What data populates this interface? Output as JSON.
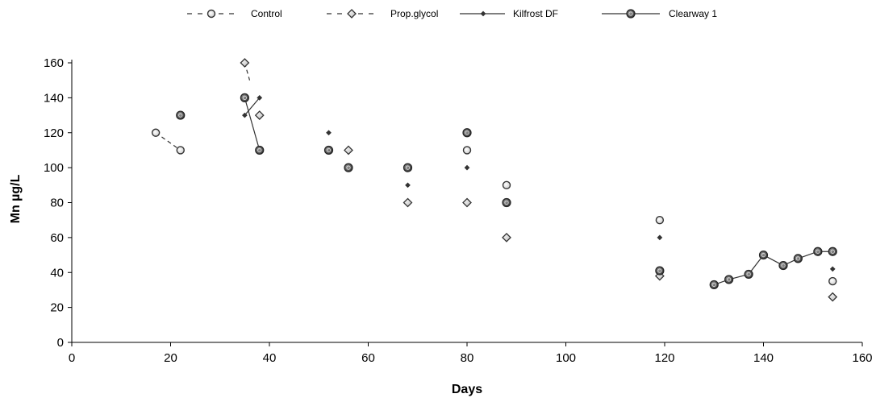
{
  "chart_data": {
    "type": "scatter",
    "xlabel": "Days",
    "ylabel": "Mn µg/L",
    "xlim": [
      0,
      160
    ],
    "ylim": [
      0,
      160
    ],
    "xticks": [
      0,
      20,
      40,
      60,
      80,
      100,
      120,
      140,
      160
    ],
    "yticks": [
      0,
      20,
      40,
      60,
      80,
      100,
      120,
      140,
      160
    ],
    "grid": false,
    "legend_position": "top",
    "series": [
      {
        "name": "Control",
        "marker": "open-circle",
        "line": "dashed",
        "color": "#333333",
        "points": [
          [
            17,
            120
          ],
          [
            22,
            110
          ],
          [
            35,
            140
          ],
          [
            52,
            110
          ],
          [
            68,
            100
          ],
          [
            80,
            110
          ],
          [
            88,
            90
          ],
          [
            119,
            70
          ],
          [
            154,
            35
          ]
        ]
      },
      {
        "name": "Prop.glycol",
        "marker": "diamond",
        "line": "dashed",
        "color": "#333333",
        "points": [
          [
            35,
            160
          ],
          [
            38,
            130
          ],
          [
            56,
            110
          ],
          [
            68,
            80
          ],
          [
            80,
            80
          ],
          [
            88,
            60
          ],
          [
            119,
            38
          ],
          [
            154,
            26
          ]
        ]
      },
      {
        "name": "Kilfrost DF",
        "marker": "small-diamond",
        "line": "solid",
        "color": "#333333",
        "points": [
          [
            35,
            130
          ],
          [
            38,
            140
          ],
          [
            52,
            120
          ],
          [
            68,
            90
          ],
          [
            80,
            100
          ],
          [
            119,
            60
          ],
          [
            154,
            42
          ]
        ]
      },
      {
        "name": "Clearway 1",
        "marker": "filled-circle",
        "line": "solid",
        "color": "#333333",
        "points": [
          [
            22,
            130
          ],
          [
            35,
            140
          ],
          [
            38,
            110
          ],
          [
            52,
            110
          ],
          [
            56,
            100
          ],
          [
            68,
            100
          ],
          [
            80,
            120
          ],
          [
            88,
            80
          ],
          [
            119,
            41
          ],
          [
            130,
            33
          ],
          [
            133,
            36
          ],
          [
            137,
            39
          ],
          [
            140,
            50
          ],
          [
            144,
            44
          ],
          [
            147,
            48
          ],
          [
            151,
            52
          ],
          [
            154,
            52
          ]
        ]
      }
    ],
    "connected_segments": [
      {
        "series": "Control",
        "points": [
          [
            17,
            120
          ],
          [
            22,
            110
          ]
        ]
      },
      {
        "series": "Prop.glycol",
        "points": [
          [
            35,
            160
          ],
          [
            36,
            150
          ]
        ]
      },
      {
        "series": "Kilfrost DF",
        "points": [
          [
            35,
            130
          ],
          [
            38,
            140
          ]
        ]
      },
      {
        "series": "Clearway 1",
        "points": [
          [
            35,
            140
          ],
          [
            38,
            110
          ]
        ]
      },
      {
        "series": "Clearway 1",
        "points": [
          [
            130,
            33
          ],
          [
            133,
            36
          ],
          [
            137,
            39
          ],
          [
            140,
            50
          ],
          [
            144,
            44
          ],
          [
            147,
            48
          ],
          [
            151,
            52
          ],
          [
            154,
            52
          ]
        ]
      }
    ]
  }
}
